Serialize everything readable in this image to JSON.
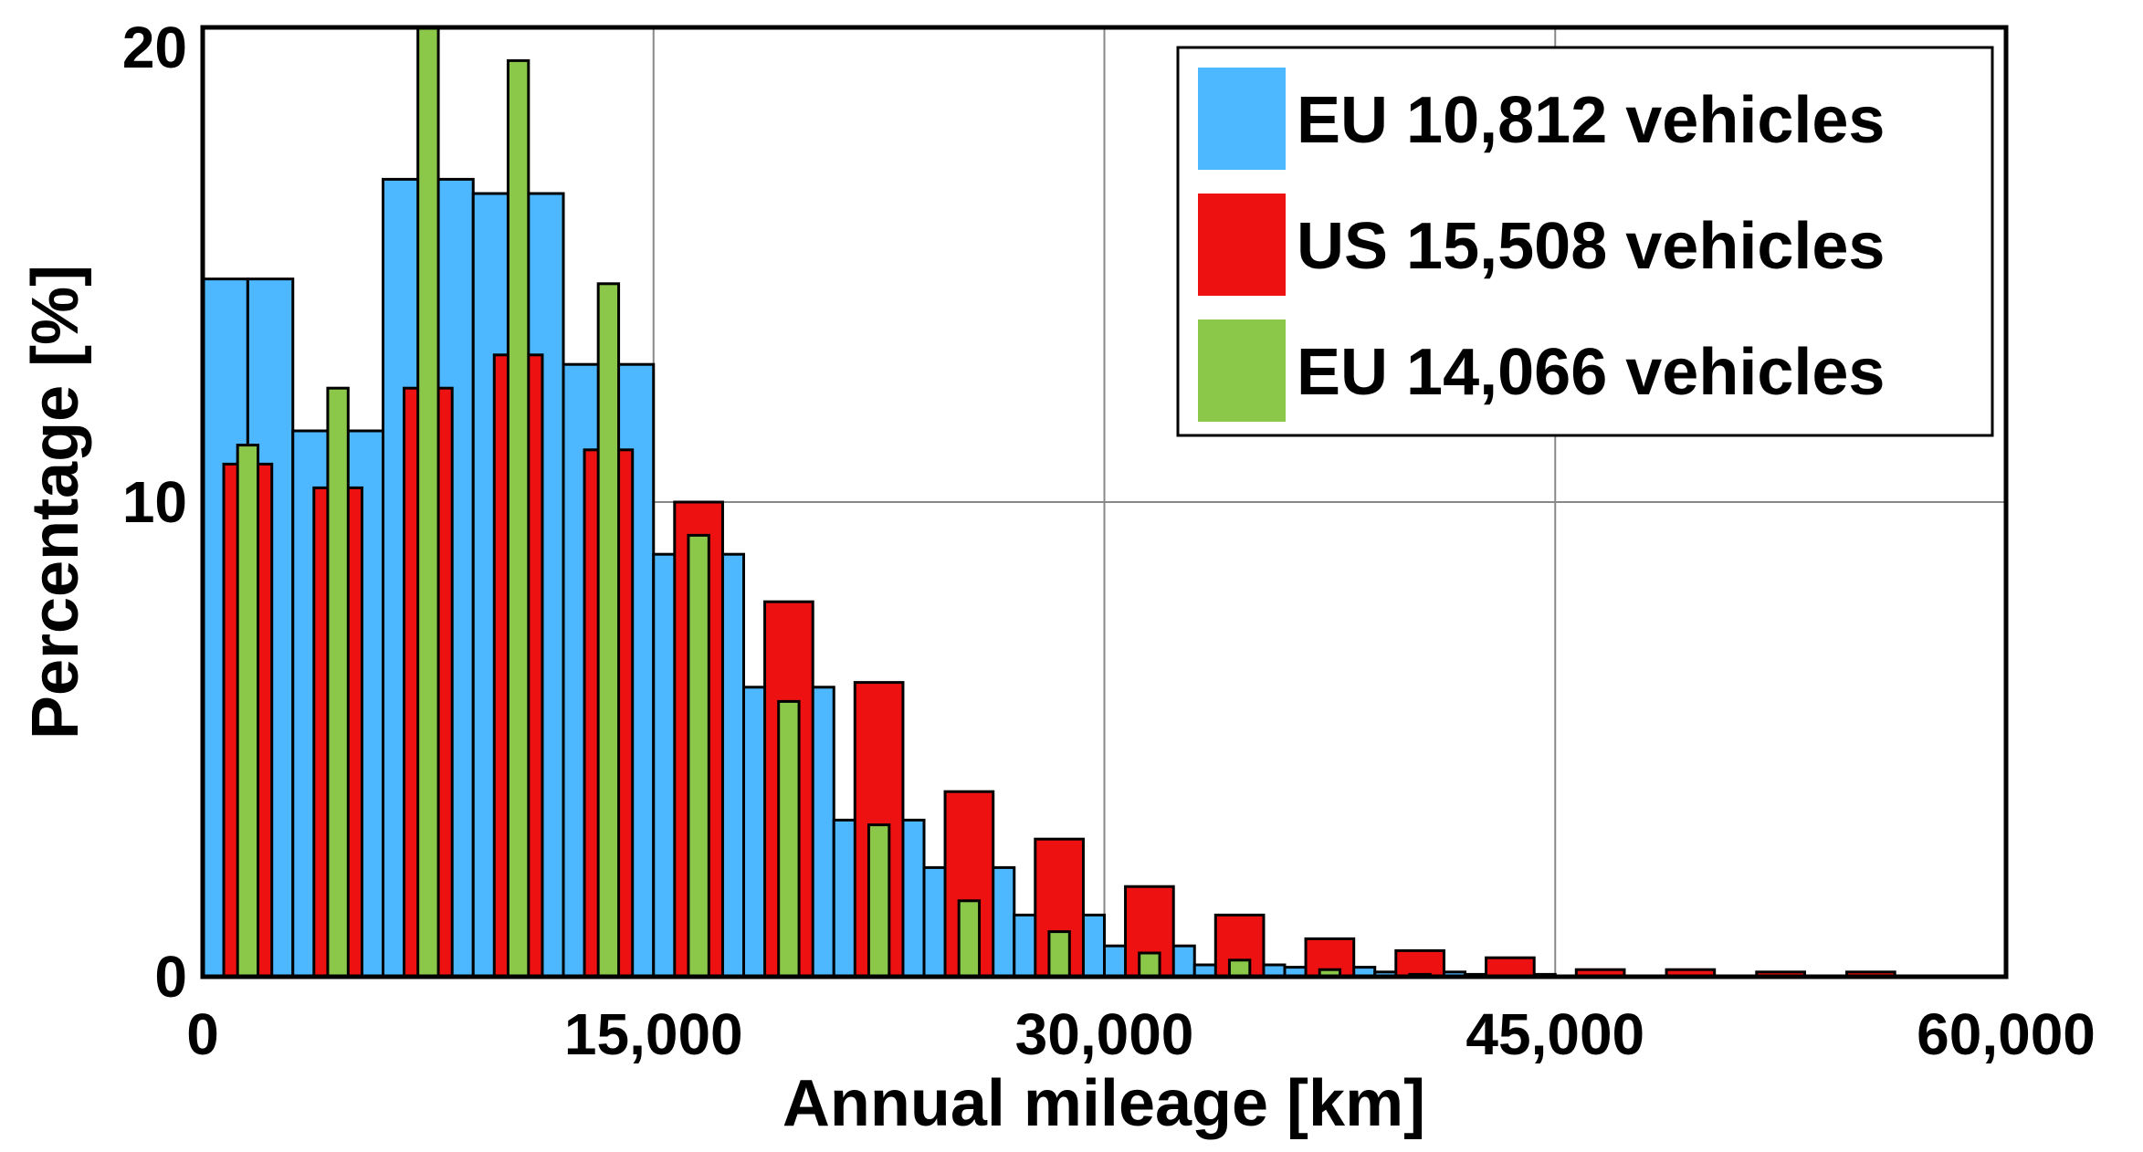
{
  "chart_data": {
    "type": "bar",
    "xlabel": "Annual mileage [km]",
    "ylabel": "Percentage [%]",
    "xlim": [
      0,
      60000
    ],
    "ylim": [
      0,
      20
    ],
    "xticks": [
      0,
      15000,
      30000,
      45000,
      60000
    ],
    "xtick_labels": [
      "0",
      "15,000",
      "30,000",
      "45,000",
      "60,000"
    ],
    "yticks": [
      0,
      10,
      20
    ],
    "ytick_labels": [
      "0",
      "10",
      "20"
    ],
    "grid": true,
    "legend_position": "top-right",
    "series": [
      {
        "name": "EU 10,812 vehicles",
        "color": "#4db8ff",
        "bin_width": 1500,
        "x": [
          1500,
          4500,
          7500,
          10500,
          13500,
          16500,
          19500,
          22500,
          25500,
          28500,
          31500,
          34500,
          37500,
          40500,
          43500
        ],
        "values": [
          14.7,
          11.5,
          16.8,
          16.5,
          12.9,
          8.9,
          6.1,
          3.3,
          2.3,
          1.3,
          0.65,
          0.25,
          0.2,
          0.1,
          0.05
        ],
        "values_second_half": [
          14.7,
          11.5,
          16.8,
          16.5,
          12.9,
          8.9,
          6.1,
          3.3,
          2.3,
          1.3,
          0.65,
          0.25,
          0.2,
          0.1,
          0.05
        ]
      },
      {
        "name": "US 15,508 vehicles",
        "color": "#ee1111",
        "x": [
          1500,
          4500,
          7500,
          10500,
          13500,
          16500,
          19500,
          22500,
          25500,
          28500,
          31500,
          34500,
          37500,
          40500,
          43500,
          46500,
          49500,
          52500,
          55500
        ],
        "values": [
          10.8,
          10.3,
          12.4,
          13.1,
          11.1,
          10.0,
          7.9,
          6.2,
          3.9,
          2.9,
          1.9,
          1.3,
          0.8,
          0.55,
          0.4,
          0.15,
          0.15,
          0.1,
          0.1
        ]
      },
      {
        "name": "EU 14,066 vehicles",
        "color": "#8bc84a",
        "x": [
          1500,
          4500,
          7500,
          10500,
          13500,
          16500,
          19500,
          22500,
          25500,
          28500,
          31500,
          34500,
          37500,
          40500
        ],
        "values": [
          11.2,
          12.4,
          20.0,
          19.3,
          14.6,
          9.3,
          5.8,
          3.2,
          1.6,
          0.95,
          0.5,
          0.35,
          0.15,
          0.05
        ]
      }
    ]
  }
}
